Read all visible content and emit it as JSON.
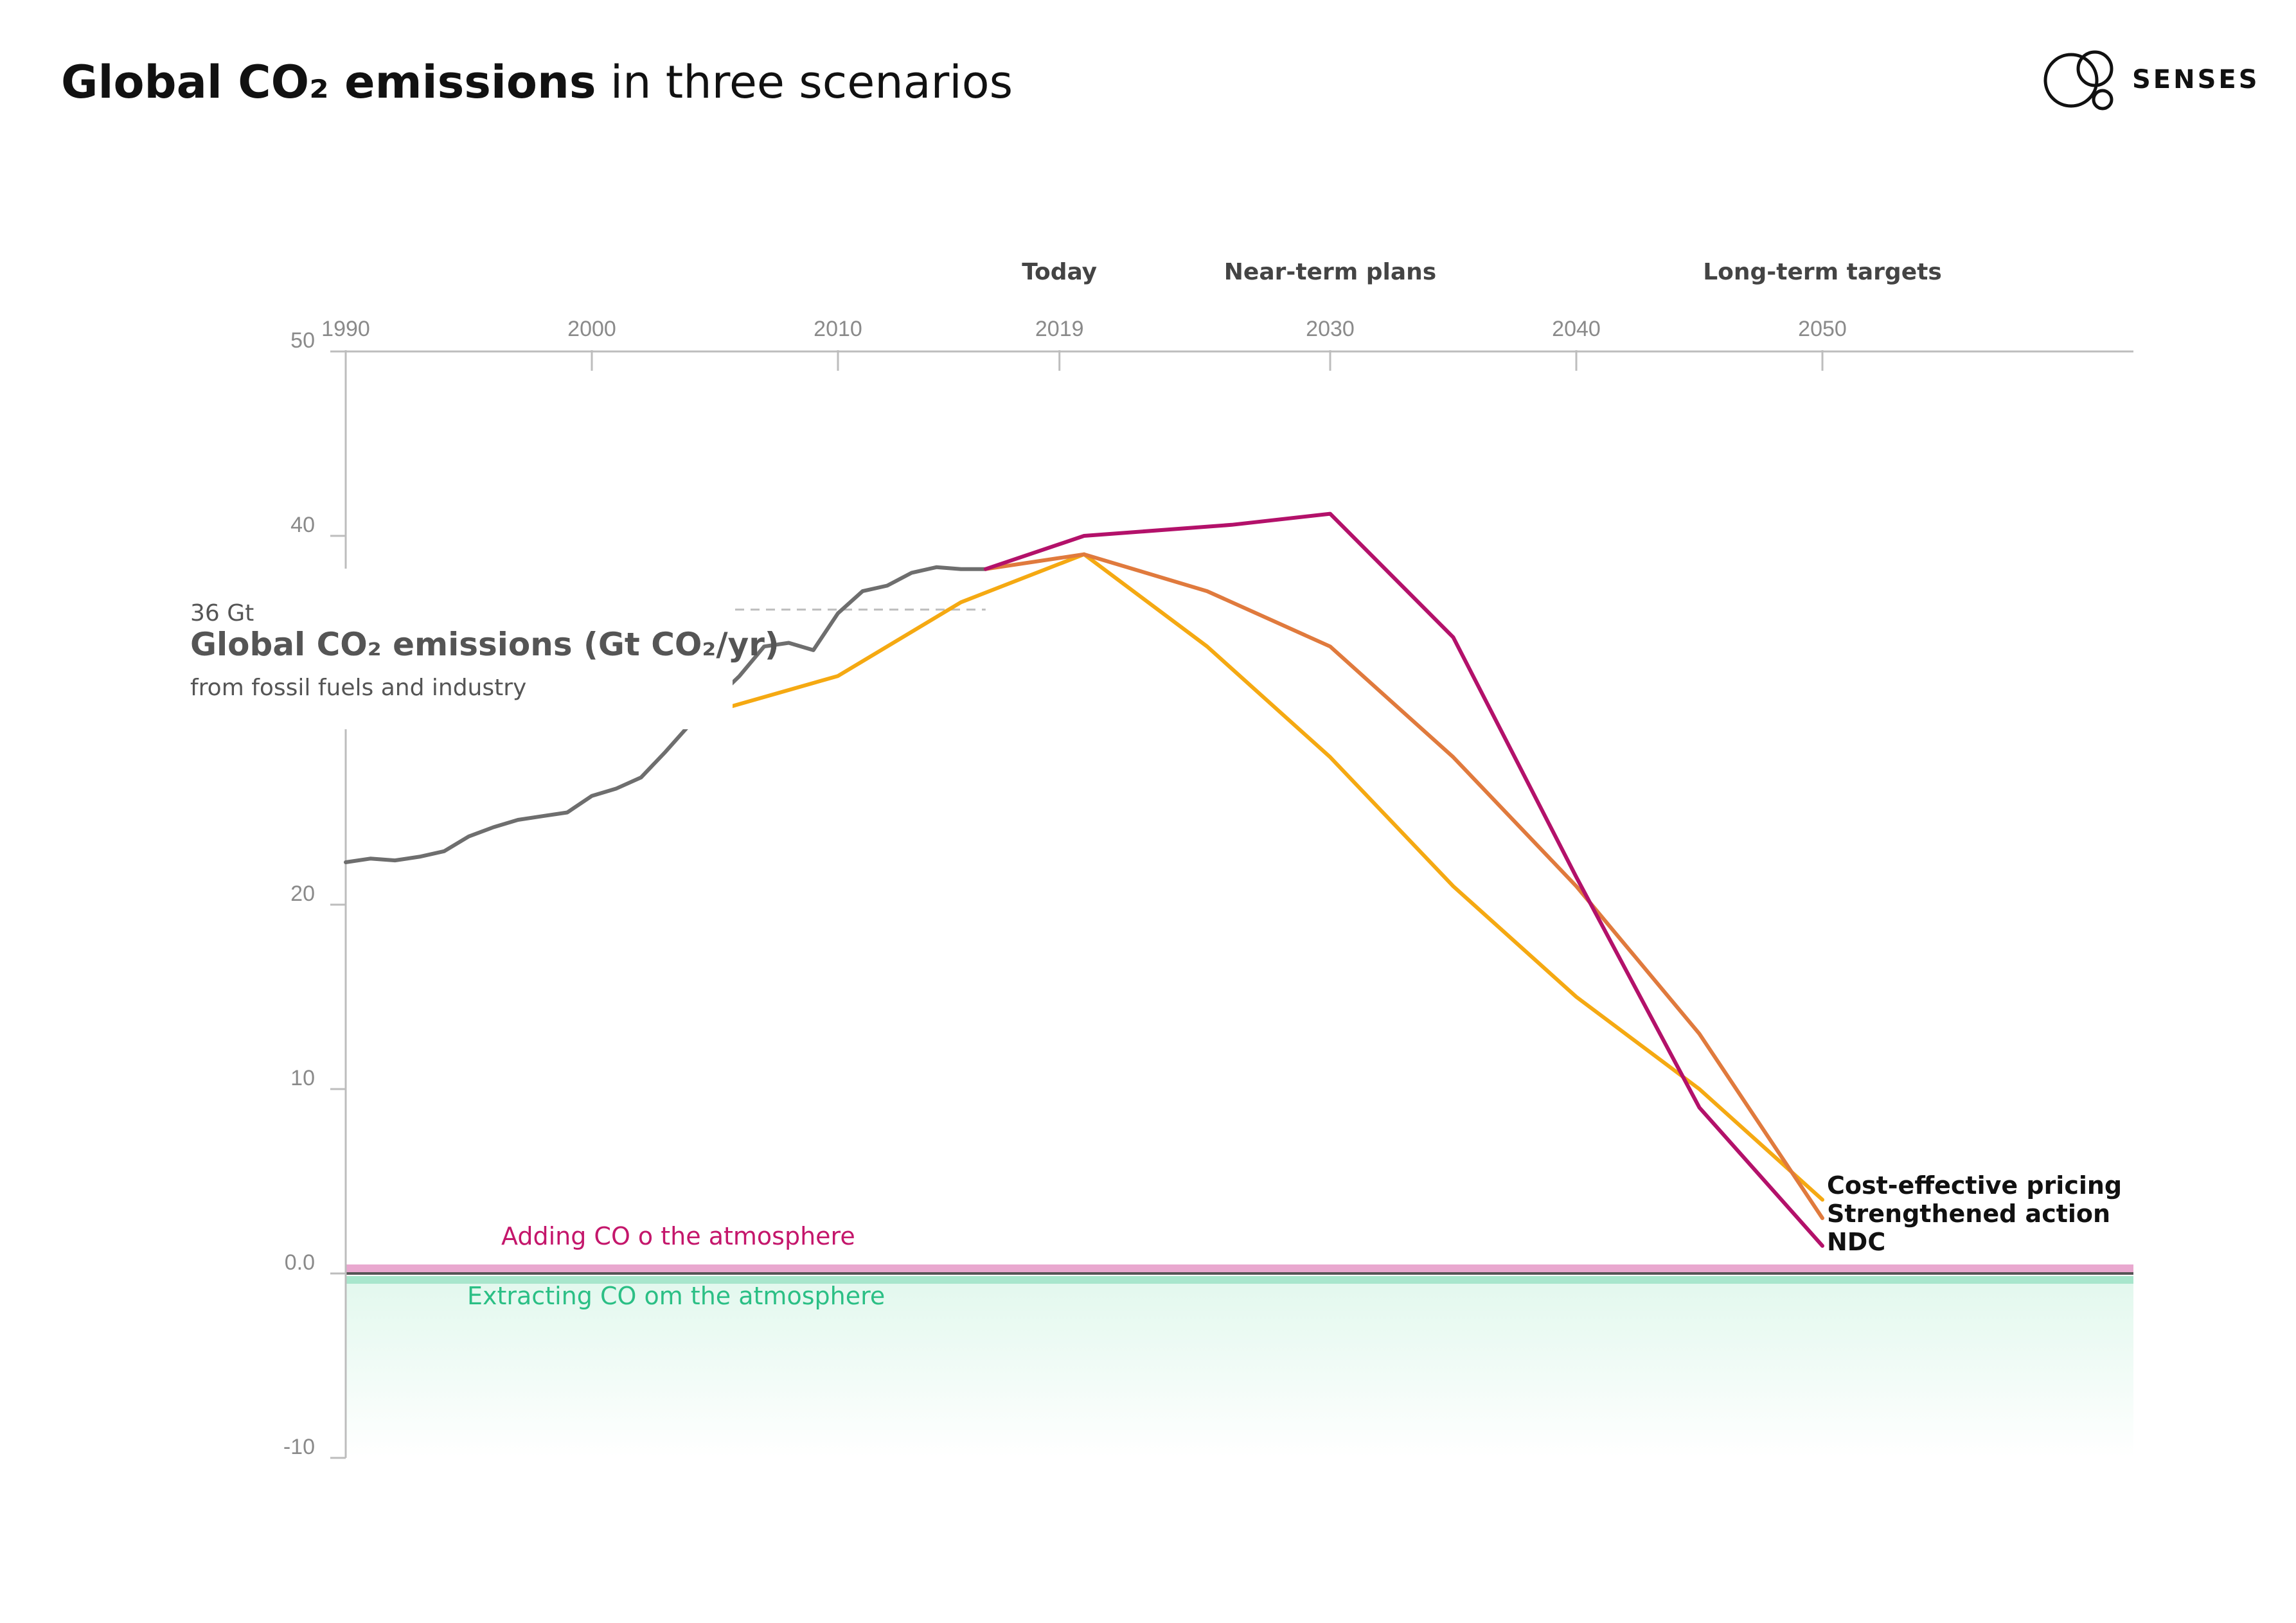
{
  "header": {
    "title_bold": "Global CO₂ emissions",
    "title_rest": " in three scenarios",
    "brand": "SENSES"
  },
  "axis": {
    "title": "Global CO₂ emissions (Gt CO₂/yr)",
    "subtitle": "from fossil fuels and industry",
    "reference_label": "36 Gt"
  },
  "bands": {
    "adding": "Adding CO o the atmosphere",
    "extracting": "Extracting CO om the atmosphere"
  },
  "milestones": {
    "today": "Today",
    "near_term": "Near-term plans",
    "long_term": "Long-term targets"
  },
  "colors": {
    "historical": "#6e6e6e",
    "ndc": "#b3116a",
    "strengthened": "#e07a3d",
    "cost_effective": "#f5a912",
    "adding_band": "#e9a8cf",
    "extracting_band": "#a8e6cc",
    "extracting_fill": "#eafaf3"
  },
  "chart_data": {
    "type": "line",
    "xlim": [
      1990,
      2063
    ],
    "ylim": [
      -10,
      50
    ],
    "x_ticks": [
      {
        "value": 1990,
        "label": "1990"
      },
      {
        "value": 2000,
        "label": "2000"
      },
      {
        "value": 2010,
        "label": "2010"
      },
      {
        "value": 2019,
        "label": "2019"
      },
      {
        "value": 2030,
        "label": "2030"
      },
      {
        "value": 2040,
        "label": "2040"
      },
      {
        "value": 2050,
        "label": "2050"
      }
    ],
    "y_ticks": [
      {
        "value": 50,
        "label": "50"
      },
      {
        "value": 40,
        "label": "40"
      },
      {
        "value": 20,
        "label": "20"
      },
      {
        "value": 10,
        "label": "10"
      },
      {
        "value": 0,
        "label": "0.0"
      },
      {
        "value": -10,
        "label": "-10"
      }
    ],
    "reference_value": 36,
    "series": [
      {
        "key": "historical",
        "x": [
          1990,
          1991,
          1992,
          1993,
          1994,
          1995,
          1996,
          1997,
          1998,
          1999,
          2000,
          2001,
          2002,
          2003,
          2004,
          2005,
          2006,
          2007,
          2008,
          2009,
          2010,
          2011,
          2012,
          2013,
          2014,
          2015,
          2016
        ],
        "y": [
          22.3,
          22.5,
          22.4,
          22.6,
          22.9,
          23.7,
          24.2,
          24.6,
          24.8,
          25.0,
          25.9,
          26.3,
          26.9,
          28.3,
          29.8,
          31.1,
          32.4,
          34.0,
          34.2,
          33.8,
          35.8,
          37.0,
          37.3,
          38.0,
          38.3,
          38.2,
          38.2
        ]
      },
      {
        "key": "ndc",
        "name": "NDC",
        "x": [
          2016,
          2020,
          2026,
          2030,
          2035,
          2040,
          2045,
          2050
        ],
        "y": [
          38.2,
          40.0,
          40.6,
          41.2,
          34.5,
          21.5,
          9.0,
          1.5
        ]
      },
      {
        "key": "strengthened",
        "name": "Strengthened action",
        "x": [
          2016,
          2020,
          2025,
          2030,
          2035,
          2040,
          2045,
          2050
        ],
        "y": [
          38.2,
          39.0,
          37.0,
          34.0,
          28.0,
          21.0,
          13.0,
          3.0
        ]
      },
      {
        "key": "cost_effective",
        "name": "Cost-effective pricing",
        "x": [
          2005,
          2010,
          2015,
          2020,
          2025,
          2030,
          2035,
          2040,
          2045,
          2050
        ],
        "y": [
          30.5,
          32.4,
          36.4,
          39.0,
          34.0,
          28.0,
          21.0,
          15.0,
          10.0,
          4.0
        ]
      }
    ]
  }
}
